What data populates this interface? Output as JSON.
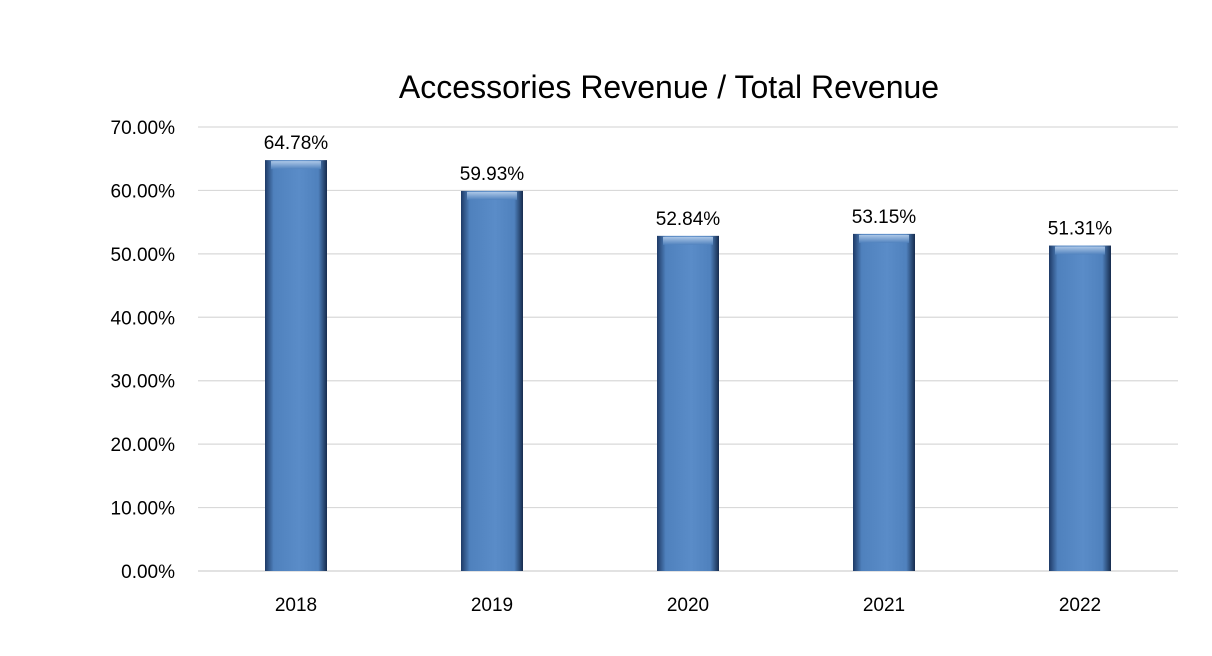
{
  "chart_data": {
    "type": "bar",
    "title": "Accessories Revenue / Total Revenue",
    "xlabel": "",
    "ylabel": "",
    "categories": [
      "2018",
      "2019",
      "2020",
      "2021",
      "2022"
    ],
    "values": [
      64.78,
      59.93,
      52.84,
      53.15,
      51.31
    ],
    "data_labels": [
      "64.78%",
      "59.93%",
      "52.84%",
      "53.15%",
      "51.31%"
    ],
    "ylim": [
      0,
      70
    ],
    "y_ticks": [
      0,
      10,
      20,
      30,
      40,
      50,
      60,
      70
    ],
    "y_tick_labels": [
      "0.00%",
      "10.00%",
      "20.00%",
      "30.00%",
      "40.00%",
      "50.00%",
      "60.00%",
      "70.00%"
    ],
    "grid": true,
    "legend": "none",
    "bar_color": "#4F81BD",
    "grid_color": "#D9D9D9"
  }
}
